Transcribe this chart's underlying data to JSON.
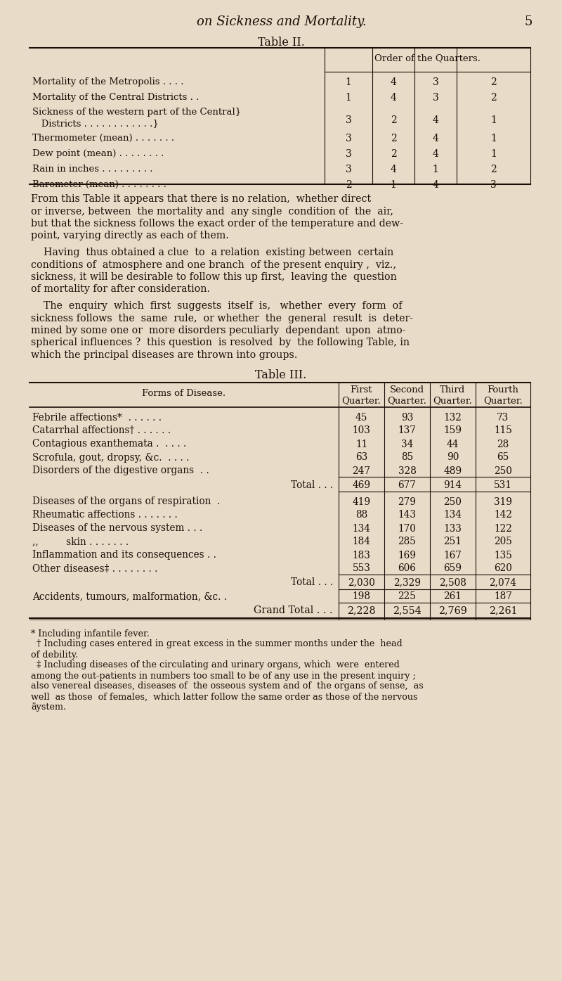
{
  "bg_color": "#e8dbc8",
  "text_color": "#1a1008",
  "page_title": "on Sickness and Mortality.",
  "page_number": "5",
  "table2_title": "Table II.",
  "table2_header": "Order of the Quarters.",
  "table2_rows": [
    {
      "label": "Mortality of the Metropolis . . . .",
      "values": [
        "1",
        "4",
        "3",
        "2"
      ],
      "twolines": false
    },
    {
      "label": "Mortality of the Central Districts . .",
      "values": [
        "1",
        "4",
        "3",
        "2"
      ],
      "twolines": false
    },
    {
      "label_line1": "Sickness of the western part of the Central}",
      "label_line2": "   Districts . . . . . . . . . . . .}",
      "values": [
        "3",
        "2",
        "4",
        "1"
      ],
      "twolines": true
    },
    {
      "label": "Thermometer (mean) . . . . . . .",
      "values": [
        "3",
        "2",
        "4",
        "1"
      ],
      "twolines": false
    },
    {
      "label": "Dew point (mean) . . . . . . . .",
      "values": [
        "3",
        "2",
        "4",
        "1"
      ],
      "twolines": false
    },
    {
      "label": "Rain in inches . . . . . . . . .",
      "values": [
        "3",
        "4",
        "1",
        "2"
      ],
      "twolines": false
    },
    {
      "label": "Barometer (mean) . . . . . . . .",
      "values": [
        "2",
        "1",
        "4",
        "3"
      ],
      "twolines": false
    }
  ],
  "paragraph1": "From this Table it appears that there is no relation,  whether direct\nor inverse, between  the mortality and  any single  condition of  the  air,\nbut that the sickness follows the exact order of the temperature and dew-\npoint, varying directly as each of them.",
  "paragraph2": "    Having  thus obtained a clue  to  a relation  existing between  certain\nconditions of  atmosphere and one branch  of the present enquiry ,  viz.,\nsickness, it will be desirable to follow this up first,  leaving the  question\nof mortality for after consideration.",
  "paragraph3": "    The  enquiry  which  first  suggests  itself  is,   whether  every  form  of\nsickness follows  the  same  rule,  or whether  the  general  result  is  deter-\nmined by some one or  more disorders peculiarly  dependant  upon  atmo-\nspherical influences ?  this question  is resolved  by  the following Table, in\nwhich the principal diseases are thrown into groups.",
  "table3_title": "Table III.",
  "table3_col_headers": [
    "Forms of Disease.",
    "First\nQuarter.",
    "Second\nQuarter.",
    "Third\nQuarter.",
    "Fourth\nQuarter."
  ],
  "table3_rows": [
    {
      "label": "Febrile affections*  . . . . . .",
      "values": [
        "45",
        "93",
        "132",
        "73"
      ],
      "style": "normal"
    },
    {
      "label": "Catarrhal affections† . . . . . .",
      "values": [
        "103",
        "137",
        "159",
        "115"
      ],
      "style": "normal"
    },
    {
      "label": "Contagious exanthemata .  . . . .",
      "values": [
        "11",
        "34",
        "44",
        "28"
      ],
      "style": "normal"
    },
    {
      "label": "Scrofula, gout, dropsy, &c.  . . . .",
      "values": [
        "63",
        "85",
        "90",
        "65"
      ],
      "style": "normal"
    },
    {
      "label": "Disorders of the digestive organs  . .",
      "values": [
        "247",
        "328",
        "489",
        "250"
      ],
      "style": "normal"
    },
    {
      "label": "Total . . .",
      "values": [
        "469",
        "677",
        "914",
        "531"
      ],
      "style": "total"
    },
    {
      "label": "Diseases of the organs of respiration  .",
      "values": [
        "419",
        "279",
        "250",
        "319"
      ],
      "style": "normal"
    },
    {
      "label": "Rheumatic affections . . . . . . .",
      "values": [
        "88",
        "143",
        "134",
        "142"
      ],
      "style": "normal"
    },
    {
      "label": "Diseases of the nervous system . . .",
      "values": [
        "134",
        "170",
        "133",
        "122"
      ],
      "style": "normal"
    },
    {
      "label": ",,         skin . . . . . . .",
      "values": [
        "184",
        "285",
        "251",
        "205"
      ],
      "style": "normal"
    },
    {
      "label": "Inflammation and its consequences . .",
      "values": [
        "183",
        "169",
        "167",
        "135"
      ],
      "style": "normal"
    },
    {
      "label": "Other diseases‡ . . . . . . . .",
      "values": [
        "553",
        "606",
        "659",
        "620"
      ],
      "style": "normal"
    },
    {
      "label": "Total . . .",
      "values": [
        "2,030",
        "2,329",
        "2,508",
        "2,074"
      ],
      "style": "total"
    },
    {
      "label": "Accidents, tumours, malformation, &c. .",
      "values": [
        "198",
        "225",
        "261",
        "187"
      ],
      "style": "normal"
    },
    {
      "label": "Grand Total . . .",
      "values": [
        "2,228",
        "2,554",
        "2,769",
        "2,261"
      ],
      "style": "grandtotal"
    }
  ],
  "footnote1": "* Including infantile fever.",
  "footnote2_line1": "  † Including cases entered in great excess in the summer months under the  head",
  "footnote2_line2": "of debility.",
  "footnote3_line1": "  ‡ Including diseases of the circulating and urinary organs, which  were  entered",
  "footnote3_line2": "among the out-patients in numbers too small to be of any use in the present inquiry ;",
  "footnote3_line3": "also venereal diseases, diseases of  the osseous system and of  the organs of sense,  as",
  "footnote3_line4": "well  as those  of females,  which latter follow the same order as those of the nervous",
  "footnote3_line5": "äystem."
}
